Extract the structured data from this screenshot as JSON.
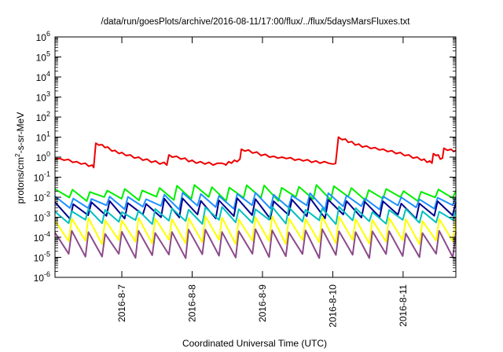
{
  "chart_data": {
    "type": "line",
    "title": "/data/run/goesPlots/archive/2016-08-11/17:00/flux/../flux/5daysMarsFluxes.txt",
    "xlabel": "Coordinated Universal Time (UTC)",
    "ylabel": {
      "base": "protons/cm",
      "sup": "2",
      "rest": "-s-sr-MeV"
    },
    "y_scale": "log",
    "ylim_exp": [
      -6,
      6
    ],
    "y_ticks": [
      {
        "exp": -6,
        "base": "10",
        "sup": "-6"
      },
      {
        "exp": -5,
        "base": "10",
        "sup": "-5"
      },
      {
        "exp": -4,
        "base": "10",
        "sup": "-4"
      },
      {
        "exp": -3,
        "base": "10",
        "sup": "-3"
      },
      {
        "exp": -2,
        "base": "10",
        "sup": "-2"
      },
      {
        "exp": -1,
        "base": "10",
        "sup": "-1"
      },
      {
        "exp": 0,
        "base": "10",
        "sup": "0"
      },
      {
        "exp": 1,
        "base": "10",
        "sup": "1"
      },
      {
        "exp": 2,
        "base": "10",
        "sup": "2"
      },
      {
        "exp": 3,
        "base": "10",
        "sup": "3"
      },
      {
        "exp": 4,
        "base": "10",
        "sup": "4"
      },
      {
        "exp": 5,
        "base": "10",
        "sup": "5"
      },
      {
        "exp": 6,
        "base": "10",
        "sup": "6"
      }
    ],
    "xlim_days": [
      -0.95,
      4.75
    ],
    "x_ticks": [
      {
        "day": 0,
        "label": "2016-8-7"
      },
      {
        "day": 1,
        "label": "2016-8-8"
      },
      {
        "day": 2,
        "label": "2016-8-9"
      },
      {
        "day": 3,
        "label": "2016-8-10"
      },
      {
        "day": 4,
        "label": "2016-8-11"
      }
    ],
    "grid": false,
    "legend": "none",
    "series": [
      {
        "color": "#ee0000",
        "width": 2,
        "pattern": "red",
        "points": [
          [
            -0.95,
            0.8
          ],
          [
            -0.88,
            0.85
          ],
          [
            -0.82,
            0.7
          ],
          [
            -0.76,
            0.78
          ],
          [
            -0.7,
            0.55
          ],
          [
            -0.64,
            0.6
          ],
          [
            -0.58,
            0.45
          ],
          [
            -0.52,
            0.5
          ],
          [
            -0.47,
            0.35
          ],
          [
            -0.42,
            0.4
          ],
          [
            -0.4,
            0.3
          ],
          [
            -0.37,
            5.0
          ],
          [
            -0.33,
            4.0
          ],
          [
            -0.28,
            4.2
          ],
          [
            -0.24,
            3.0
          ],
          [
            -0.2,
            3.2
          ],
          [
            -0.14,
            2.0
          ],
          [
            -0.1,
            2.2
          ],
          [
            -0.04,
            1.5
          ],
          [
            0.0,
            1.7
          ],
          [
            0.06,
            1.2
          ],
          [
            0.12,
            1.3
          ],
          [
            0.18,
            0.9
          ],
          [
            0.24,
            1.0
          ],
          [
            0.3,
            0.7
          ],
          [
            0.36,
            0.8
          ],
          [
            0.42,
            0.55
          ],
          [
            0.48,
            0.65
          ],
          [
            0.54,
            0.45
          ],
          [
            0.6,
            0.55
          ],
          [
            0.64,
            0.4
          ],
          [
            0.67,
            1.3
          ],
          [
            0.72,
            1.0
          ],
          [
            0.78,
            1.1
          ],
          [
            0.84,
            0.8
          ],
          [
            0.9,
            0.9
          ],
          [
            0.95,
            0.6
          ],
          [
            1.0,
            0.7
          ],
          [
            1.06,
            0.5
          ],
          [
            1.12,
            0.6
          ],
          [
            1.18,
            0.45
          ],
          [
            1.24,
            0.55
          ],
          [
            1.3,
            0.4
          ],
          [
            1.36,
            0.5
          ],
          [
            1.42,
            0.5
          ],
          [
            1.46,
            0.45
          ],
          [
            1.48,
            0.4
          ],
          [
            1.52,
            0.6
          ],
          [
            1.56,
            0.5
          ],
          [
            1.6,
            0.7
          ],
          [
            1.64,
            0.6
          ],
          [
            1.68,
            0.8
          ],
          [
            1.7,
            2.5
          ],
          [
            1.75,
            2.0
          ],
          [
            1.8,
            2.3
          ],
          [
            1.86,
            1.6
          ],
          [
            1.92,
            1.8
          ],
          [
            1.98,
            1.2
          ],
          [
            2.04,
            1.4
          ],
          [
            2.1,
            1.0
          ],
          [
            2.16,
            1.1
          ],
          [
            2.22,
            0.9
          ],
          [
            2.28,
            1.0
          ],
          [
            2.34,
            0.85
          ],
          [
            2.4,
            0.95
          ],
          [
            2.46,
            0.7
          ],
          [
            2.52,
            0.8
          ],
          [
            2.58,
            0.65
          ],
          [
            2.64,
            0.75
          ],
          [
            2.7,
            0.55
          ],
          [
            2.76,
            0.65
          ],
          [
            2.82,
            0.5
          ],
          [
            2.88,
            0.6
          ],
          [
            2.94,
            0.5
          ],
          [
            3.0,
            0.45
          ],
          [
            3.04,
            0.48
          ],
          [
            3.08,
            10.0
          ],
          [
            3.13,
            7.5
          ],
          [
            3.18,
            8.0
          ],
          [
            3.22,
            5.5
          ],
          [
            3.27,
            6.0
          ],
          [
            3.32,
            4.0
          ],
          [
            3.37,
            4.5
          ],
          [
            3.42,
            3.2
          ],
          [
            3.48,
            3.6
          ],
          [
            3.54,
            2.7
          ],
          [
            3.6,
            3.0
          ],
          [
            3.66,
            2.3
          ],
          [
            3.72,
            2.5
          ],
          [
            3.78,
            1.9
          ],
          [
            3.84,
            2.1
          ],
          [
            3.9,
            1.5
          ],
          [
            3.96,
            1.7
          ],
          [
            4.02,
            1.2
          ],
          [
            4.08,
            1.3
          ],
          [
            4.14,
            0.9
          ],
          [
            4.2,
            1.0
          ],
          [
            4.26,
            0.7
          ],
          [
            4.3,
            0.8
          ],
          [
            4.34,
            0.55
          ],
          [
            4.38,
            0.65
          ],
          [
            4.41,
            0.5
          ],
          [
            4.43,
            1.5
          ],
          [
            4.47,
            1.2
          ],
          [
            4.5,
            1.3
          ],
          [
            4.53,
            0.8
          ],
          [
            4.56,
            0.9
          ],
          [
            4.58,
            2.8
          ],
          [
            4.63,
            2.2
          ],
          [
            4.68,
            2.5
          ],
          [
            4.72,
            1.9
          ],
          [
            4.75,
            2.2
          ]
        ]
      },
      {
        "color": "#00ee00",
        "width": 2,
        "pattern": "saw",
        "peak": 0.022,
        "base": 0.0085,
        "n": 23,
        "boost": [
          [
            0.5,
            3.4,
            1.6
          ]
        ]
      },
      {
        "color": "#1e90ff",
        "width": 2,
        "pattern": "saw",
        "peak": 0.0095,
        "base": 0.0032,
        "n": 22,
        "boost": [
          [
            0.5,
            3.4,
            1.5
          ]
        ]
      },
      {
        "color": "#00008b",
        "width": 2,
        "pattern": "saw",
        "peak": 0.0055,
        "base": 0.0011,
        "n": 22,
        "boost": [
          [
            0.5,
            3.4,
            1.4
          ]
        ]
      },
      {
        "color": "#00c0c0",
        "width": 2,
        "pattern": "saw",
        "peak": 0.0022,
        "base": 0.0006,
        "n": 24,
        "boost": [
          [
            0.5,
            3.4,
            1.3
          ]
        ]
      },
      {
        "color": "#ffff00",
        "width": 2,
        "pattern": "saw",
        "peak": 0.0008,
        "base": 6e-05,
        "n": 24,
        "boost": [
          [
            0.5,
            3.4,
            1.2
          ]
        ]
      },
      {
        "color": "#8b4a8b",
        "width": 2,
        "pattern": "saw",
        "peak": 0.00018,
        "base": 1.2e-05,
        "n": 24,
        "boost": [
          [
            0.5,
            3.4,
            1.2
          ]
        ]
      }
    ]
  }
}
